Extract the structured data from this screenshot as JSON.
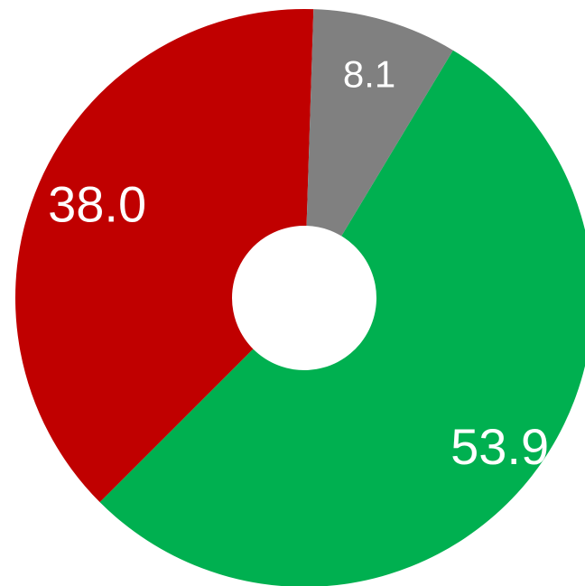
{
  "chart_data": {
    "type": "pie",
    "variant": "donut",
    "title": "",
    "legend": "none",
    "slices": [
      {
        "label": "53.9",
        "value": 53.9,
        "color": "#00B050"
      },
      {
        "label": "38.0",
        "value": 38.0,
        "color": "#C00000"
      },
      {
        "label": "8.1",
        "value": 8.1,
        "color": "#808080"
      }
    ]
  }
}
